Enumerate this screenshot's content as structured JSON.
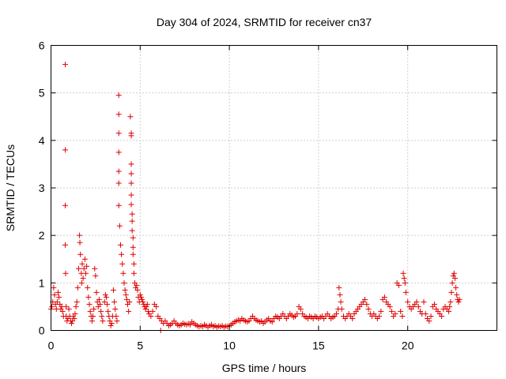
{
  "chart_data": {
    "type": "scatter",
    "title": "Day 304 of 2024, SRMTID for receiver cn37",
    "xlabel": "GPS time / hours",
    "ylabel": "SRMTID / TECUs",
    "xlim": [
      0,
      25
    ],
    "ylim": [
      0,
      6
    ],
    "xticks": [
      0,
      5,
      10,
      15,
      20
    ],
    "yticks": [
      0,
      1,
      2,
      3,
      4,
      5,
      6
    ],
    "xtick_labels": [
      "0",
      "5",
      "10",
      "15",
      "20"
    ],
    "ytick_labels": [
      "0",
      "1",
      "2",
      "3",
      "4",
      "5",
      "6"
    ],
    "grid": true,
    "marker": "+",
    "color": "#e00000",
    "series": [
      {
        "name": "SRMTID",
        "points": [
          [
            0.0,
            0.45
          ],
          [
            0.05,
            0.5
          ],
          [
            0.1,
            0.6
          ],
          [
            0.15,
            0.9
          ],
          [
            0.2,
            0.75
          ],
          [
            0.25,
            0.55
          ],
          [
            0.3,
            0.45
          ],
          [
            0.35,
            0.6
          ],
          [
            0.4,
            0.8
          ],
          [
            0.45,
            0.7
          ],
          [
            0.5,
            0.55
          ],
          [
            0.55,
            0.45
          ],
          [
            0.6,
            0.5
          ],
          [
            0.65,
            0.4
          ],
          [
            0.7,
            0.3
          ],
          [
            0.8,
            5.6
          ],
          [
            0.8,
            3.8
          ],
          [
            0.8,
            2.63
          ],
          [
            0.8,
            1.8
          ],
          [
            0.82,
            1.2
          ],
          [
            0.85,
            0.5
          ],
          [
            0.85,
            0.3
          ],
          [
            0.9,
            0.2
          ],
          [
            0.95,
            0.25
          ],
          [
            1.0,
            0.45
          ],
          [
            1.05,
            0.3
          ],
          [
            1.1,
            0.2
          ],
          [
            1.15,
            0.15
          ],
          [
            1.2,
            0.2
          ],
          [
            1.25,
            0.3
          ],
          [
            1.3,
            0.25
          ],
          [
            1.35,
            0.35
          ],
          [
            1.4,
            0.5
          ],
          [
            1.45,
            0.6
          ],
          [
            1.5,
            0.9
          ],
          [
            1.55,
            1.3
          ],
          [
            1.6,
            2.0
          ],
          [
            1.62,
            1.85
          ],
          [
            1.65,
            1.6
          ],
          [
            1.7,
            1.2
          ],
          [
            1.72,
            1.0
          ],
          [
            1.75,
            1.4
          ],
          [
            1.8,
            1.1
          ],
          [
            1.85,
            1.3
          ],
          [
            1.9,
            1.5
          ],
          [
            1.95,
            1.2
          ],
          [
            2.0,
            1.35
          ],
          [
            2.05,
            0.9
          ],
          [
            2.1,
            0.7
          ],
          [
            2.15,
            0.55
          ],
          [
            2.2,
            0.4
          ],
          [
            2.25,
            0.3
          ],
          [
            2.3,
            0.2
          ],
          [
            2.35,
            0.3
          ],
          [
            2.4,
            0.45
          ],
          [
            2.45,
            1.3
          ],
          [
            2.5,
            1.15
          ],
          [
            2.55,
            0.8
          ],
          [
            2.6,
            0.6
          ],
          [
            2.65,
            0.5
          ],
          [
            2.7,
            0.65
          ],
          [
            2.75,
            0.55
          ],
          [
            2.8,
            0.4
          ],
          [
            2.85,
            0.3
          ],
          [
            2.9,
            0.2
          ],
          [
            3.0,
            0.6
          ],
          [
            3.05,
            0.75
          ],
          [
            3.1,
            0.7
          ],
          [
            3.15,
            0.55
          ],
          [
            3.2,
            0.4
          ],
          [
            3.25,
            0.3
          ],
          [
            3.3,
            0.2
          ],
          [
            3.35,
            0.1
          ],
          [
            3.4,
            0.15
          ],
          [
            3.45,
            0.3
          ],
          [
            3.5,
            0.85
          ],
          [
            3.55,
            0.6
          ],
          [
            3.6,
            0.45
          ],
          [
            3.65,
            0.3
          ],
          [
            3.7,
            0.2
          ],
          [
            3.8,
            4.95
          ],
          [
            3.8,
            4.55
          ],
          [
            3.8,
            4.15
          ],
          [
            3.8,
            3.75
          ],
          [
            3.8,
            3.35
          ],
          [
            3.8,
            3.1
          ],
          [
            3.8,
            2.63
          ],
          [
            3.85,
            2.2
          ],
          [
            3.9,
            1.8
          ],
          [
            3.95,
            1.6
          ],
          [
            4.0,
            1.4
          ],
          [
            4.05,
            1.2
          ],
          [
            4.1,
            1.0
          ],
          [
            4.15,
            0.85
          ],
          [
            4.2,
            0.75
          ],
          [
            4.25,
            0.65
          ],
          [
            4.3,
            0.55
          ],
          [
            4.35,
            0.4
          ],
          [
            4.4,
            0.6
          ],
          [
            4.45,
            4.5
          ],
          [
            4.5,
            4.15
          ],
          [
            4.5,
            4.1
          ],
          [
            4.5,
            3.5
          ],
          [
            4.5,
            3.3
          ],
          [
            4.5,
            3.1
          ],
          [
            4.5,
            2.85
          ],
          [
            4.5,
            2.65
          ],
          [
            4.55,
            2.45
          ],
          [
            4.55,
            2.3
          ],
          [
            4.55,
            2.1
          ],
          [
            4.6,
            1.95
          ],
          [
            4.6,
            1.75
          ],
          [
            4.6,
            1.6
          ],
          [
            4.65,
            1.4
          ],
          [
            4.65,
            1.2
          ],
          [
            4.7,
            1.0
          ],
          [
            4.75,
            0.9
          ],
          [
            4.8,
            0.95
          ],
          [
            4.85,
            0.85
          ],
          [
            4.9,
            0.7
          ],
          [
            4.95,
            0.6
          ],
          [
            5.0,
            0.75
          ],
          [
            5.05,
            0.7
          ],
          [
            5.1,
            0.65
          ],
          [
            5.15,
            0.6
          ],
          [
            5.2,
            0.55
          ],
          [
            5.25,
            0.5
          ],
          [
            5.3,
            0.45
          ],
          [
            5.35,
            0.5
          ],
          [
            5.4,
            0.55
          ],
          [
            5.45,
            0.4
          ],
          [
            5.5,
            0.35
          ],
          [
            5.6,
            0.3
          ],
          [
            5.7,
            0.4
          ],
          [
            5.8,
            0.55
          ],
          [
            5.9,
            0.5
          ],
          [
            6.0,
            0.3
          ],
          [
            6.1,
            0.25
          ],
          [
            6.15,
            0.0
          ],
          [
            6.2,
            0.2
          ],
          [
            6.3,
            0.15
          ],
          [
            6.4,
            0.2
          ],
          [
            6.5,
            0.15
          ],
          [
            6.6,
            0.1
          ],
          [
            6.7,
            0.12
          ],
          [
            6.8,
            0.15
          ],
          [
            6.9,
            0.2
          ],
          [
            7.0,
            0.15
          ],
          [
            7.1,
            0.12
          ],
          [
            7.2,
            0.1
          ],
          [
            7.3,
            0.12
          ],
          [
            7.4,
            0.15
          ],
          [
            7.5,
            0.13
          ],
          [
            7.6,
            0.12
          ],
          [
            7.7,
            0.14
          ],
          [
            7.8,
            0.12
          ],
          [
            7.9,
            0.18
          ],
          [
            8.0,
            0.15
          ],
          [
            8.1,
            0.12
          ],
          [
            8.2,
            0.1
          ],
          [
            8.3,
            0.08
          ],
          [
            8.4,
            0.1
          ],
          [
            8.5,
            0.08
          ],
          [
            8.6,
            0.12
          ],
          [
            8.7,
            0.1
          ],
          [
            8.8,
            0.07
          ],
          [
            8.9,
            0.1
          ],
          [
            9.0,
            0.12
          ],
          [
            9.1,
            0.08
          ],
          [
            9.2,
            0.1
          ],
          [
            9.3,
            0.07
          ],
          [
            9.4,
            0.09
          ],
          [
            9.5,
            0.08
          ],
          [
            9.6,
            0.1
          ],
          [
            9.7,
            0.07
          ],
          [
            9.8,
            0.09
          ],
          [
            9.9,
            0.08
          ],
          [
            10.0,
            0.1
          ],
          [
            10.1,
            0.12
          ],
          [
            10.2,
            0.15
          ],
          [
            10.3,
            0.18
          ],
          [
            10.4,
            0.2
          ],
          [
            10.5,
            0.22
          ],
          [
            10.6,
            0.2
          ],
          [
            10.7,
            0.25
          ],
          [
            10.8,
            0.22
          ],
          [
            10.9,
            0.2
          ],
          [
            11.0,
            0.18
          ],
          [
            11.1,
            0.2
          ],
          [
            11.2,
            0.25
          ],
          [
            11.3,
            0.3
          ],
          [
            11.4,
            0.25
          ],
          [
            11.5,
            0.22
          ],
          [
            11.6,
            0.2
          ],
          [
            11.7,
            0.18
          ],
          [
            11.8,
            0.2
          ],
          [
            11.9,
            0.15
          ],
          [
            12.0,
            0.18
          ],
          [
            12.1,
            0.22
          ],
          [
            12.2,
            0.25
          ],
          [
            12.3,
            0.2
          ],
          [
            12.4,
            0.18
          ],
          [
            12.5,
            0.25
          ],
          [
            12.6,
            0.3
          ],
          [
            12.7,
            0.28
          ],
          [
            12.8,
            0.25
          ],
          [
            12.9,
            0.3
          ],
          [
            13.0,
            0.35
          ],
          [
            13.1,
            0.3
          ],
          [
            13.2,
            0.25
          ],
          [
            13.3,
            0.3
          ],
          [
            13.4,
            0.35
          ],
          [
            13.5,
            0.32
          ],
          [
            13.6,
            0.28
          ],
          [
            13.7,
            0.3
          ],
          [
            13.8,
            0.35
          ],
          [
            13.9,
            0.5
          ],
          [
            14.0,
            0.45
          ],
          [
            14.1,
            0.35
          ],
          [
            14.2,
            0.3
          ],
          [
            14.3,
            0.28
          ],
          [
            14.4,
            0.25
          ],
          [
            14.5,
            0.3
          ],
          [
            14.6,
            0.28
          ],
          [
            14.7,
            0.25
          ],
          [
            14.8,
            0.3
          ],
          [
            14.9,
            0.28
          ],
          [
            15.0,
            0.25
          ],
          [
            15.1,
            0.28
          ],
          [
            15.2,
            0.3
          ],
          [
            15.3,
            0.25
          ],
          [
            15.4,
            0.3
          ],
          [
            15.5,
            0.35
          ],
          [
            15.6,
            0.3
          ],
          [
            15.7,
            0.25
          ],
          [
            15.8,
            0.28
          ],
          [
            15.9,
            0.3
          ],
          [
            16.0,
            0.35
          ],
          [
            16.1,
            0.45
          ],
          [
            16.15,
            0.9
          ],
          [
            16.2,
            0.75
          ],
          [
            16.25,
            0.6
          ],
          [
            16.3,
            0.45
          ],
          [
            16.4,
            0.3
          ],
          [
            16.5,
            0.25
          ],
          [
            16.6,
            0.3
          ],
          [
            16.7,
            0.35
          ],
          [
            16.8,
            0.3
          ],
          [
            16.9,
            0.25
          ],
          [
            17.0,
            0.35
          ],
          [
            17.1,
            0.4
          ],
          [
            17.2,
            0.45
          ],
          [
            17.3,
            0.5
          ],
          [
            17.4,
            0.55
          ],
          [
            17.5,
            0.6
          ],
          [
            17.6,
            0.65
          ],
          [
            17.7,
            0.55
          ],
          [
            17.8,
            0.45
          ],
          [
            17.9,
            0.35
          ],
          [
            18.0,
            0.3
          ],
          [
            18.1,
            0.35
          ],
          [
            18.2,
            0.3
          ],
          [
            18.3,
            0.25
          ],
          [
            18.4,
            0.3
          ],
          [
            18.5,
            0.4
          ],
          [
            18.6,
            0.65
          ],
          [
            18.7,
            0.7
          ],
          [
            18.8,
            0.6
          ],
          [
            18.9,
            0.55
          ],
          [
            19.0,
            0.5
          ],
          [
            19.1,
            0.4
          ],
          [
            19.2,
            0.3
          ],
          [
            19.3,
            0.35
          ],
          [
            19.4,
            1.0
          ],
          [
            19.5,
            0.95
          ],
          [
            19.6,
            0.4
          ],
          [
            19.7,
            0.3
          ],
          [
            19.75,
            1.2
          ],
          [
            19.8,
            1.1
          ],
          [
            19.85,
            1.0
          ],
          [
            19.9,
            0.8
          ],
          [
            20.0,
            0.6
          ],
          [
            20.1,
            0.5
          ],
          [
            20.2,
            0.45
          ],
          [
            20.3,
            0.5
          ],
          [
            20.4,
            0.55
          ],
          [
            20.5,
            0.6
          ],
          [
            20.6,
            0.5
          ],
          [
            20.7,
            0.4
          ],
          [
            20.8,
            0.35
          ],
          [
            20.9,
            0.6
          ],
          [
            21.0,
            0.35
          ],
          [
            21.1,
            0.25
          ],
          [
            21.2,
            0.2
          ],
          [
            21.3,
            0.3
          ],
          [
            21.4,
            0.5
          ],
          [
            21.5,
            0.55
          ],
          [
            21.6,
            0.45
          ],
          [
            21.7,
            0.4
          ],
          [
            21.8,
            0.35
          ],
          [
            21.9,
            0.3
          ],
          [
            22.0,
            0.45
          ],
          [
            22.1,
            0.5
          ],
          [
            22.2,
            0.45
          ],
          [
            22.3,
            0.4
          ],
          [
            22.35,
            0.5
          ],
          [
            22.4,
            0.6
          ],
          [
            22.45,
            0.8
          ],
          [
            22.5,
            1.0
          ],
          [
            22.55,
            1.15
          ],
          [
            22.6,
            1.2
          ],
          [
            22.65,
            1.1
          ],
          [
            22.7,
            0.9
          ],
          [
            22.75,
            0.75
          ],
          [
            22.8,
            0.65
          ],
          [
            22.85,
            0.6
          ],
          [
            22.9,
            0.65
          ]
        ]
      }
    ]
  }
}
